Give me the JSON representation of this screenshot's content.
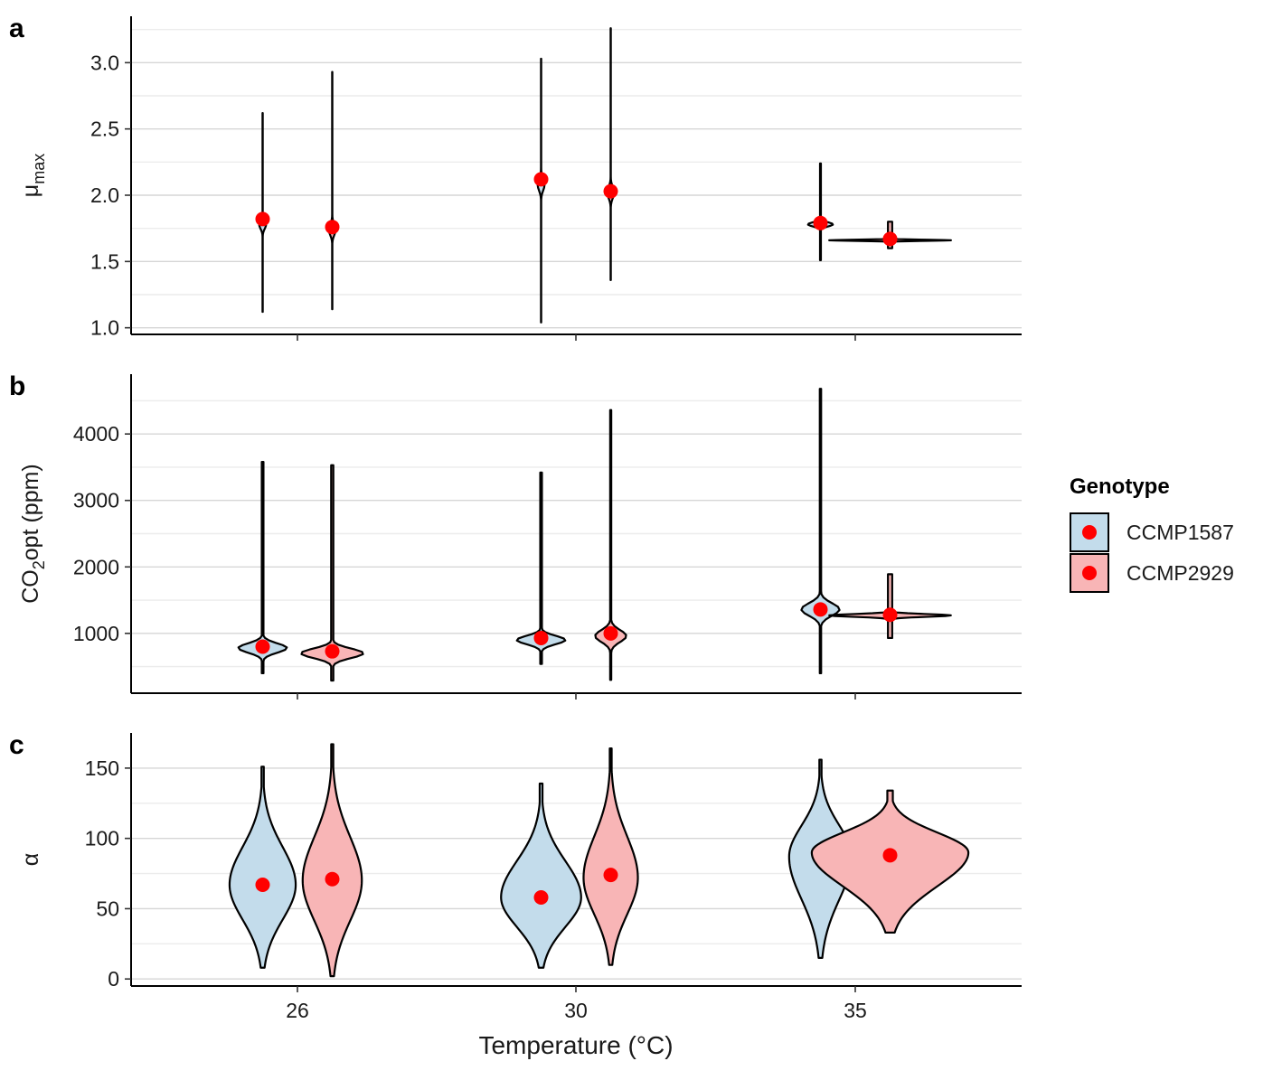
{
  "colors": {
    "CCMP1587": "#c3dceb",
    "CCMP2929": "#f8b5b6",
    "point": "#ff0000",
    "outline": "#000000",
    "grid_major": "#d6d6d6",
    "grid_minor": "#ececec"
  },
  "chart_data": {
    "type": "violin",
    "xlabel": "Temperature (°C)",
    "categories": [
      "26",
      "30",
      "35"
    ],
    "legend": {
      "title": "Genotype",
      "placement": "right",
      "entries": [
        "CCMP1587",
        "CCMP2929"
      ]
    },
    "panels": [
      {
        "tag": "a",
        "ylabel": "μmax",
        "ylabel_main": "μ",
        "ylabel_sub": "max",
        "ylim": [
          0.95,
          3.35
        ],
        "yticks": [
          "1.0",
          "1.5",
          "2.0",
          "2.5",
          "3.0"
        ],
        "series": [
          {
            "name": "CCMP1587",
            "violins": [
              {
                "x": "26",
                "min": 1.12,
                "max": 2.62,
                "point": 1.82,
                "mode": 1.78,
                "profile": "spike",
                "width": 0.1
              },
              {
                "x": "30",
                "min": 1.04,
                "max": 3.03,
                "point": 2.12,
                "mode": 2.08,
                "profile": "spike",
                "width": 0.1
              },
              {
                "x": "35",
                "min": 1.51,
                "max": 2.24,
                "point": 1.79,
                "mode": 1.78,
                "profile": "spike",
                "width": 0.36
              }
            ]
          },
          {
            "name": "CCMP2929",
            "violins": [
              {
                "x": "26",
                "min": 1.14,
                "max": 2.93,
                "point": 1.76,
                "mode": 1.74,
                "profile": "spike",
                "width": 0.1
              },
              {
                "x": "30",
                "min": 1.36,
                "max": 3.26,
                "point": 2.03,
                "mode": 2.02,
                "profile": "spike",
                "width": 0.1
              },
              {
                "x": "35",
                "min": 1.6,
                "max": 1.8,
                "point": 1.67,
                "mode": 1.66,
                "profile": "spike",
                "width": 1.75
              }
            ]
          }
        ]
      },
      {
        "tag": "b",
        "ylabel": "CO2opt (ppm)",
        "ylabel_main": "CO",
        "ylabel_sub": "2",
        "ylabel_end": "opt (ppm)",
        "ylim": [
          100,
          4900
        ],
        "yticks": [
          "1000",
          "2000",
          "3000",
          "4000"
        ],
        "series": [
          {
            "name": "CCMP1587",
            "violins": [
              {
                "x": "26",
                "min": 400,
                "max": 3580,
                "point": 800,
                "mode": 780,
                "profile": "spike",
                "width": 0.7
              },
              {
                "x": "30",
                "min": 540,
                "max": 3420,
                "point": 930,
                "mode": 900,
                "profile": "spike",
                "width": 0.7
              },
              {
                "x": "35",
                "min": 400,
                "max": 4680,
                "point": 1360,
                "mode": 1360,
                "profile": "spike",
                "width": 0.55
              }
            ]
          },
          {
            "name": "CCMP2929",
            "violins": [
              {
                "x": "26",
                "min": 290,
                "max": 3530,
                "point": 730,
                "mode": 700,
                "profile": "spike",
                "width": 0.9
              },
              {
                "x": "30",
                "min": 300,
                "max": 4360,
                "point": 1000,
                "mode": 960,
                "profile": "spike",
                "width": 0.45
              },
              {
                "x": "35",
                "min": 930,
                "max": 1890,
                "point": 1280,
                "mode": 1270,
                "profile": "spike",
                "width": 1.75
              }
            ]
          }
        ]
      },
      {
        "tag": "c",
        "ylabel": "α",
        "ylabel_main": "α",
        "ylim": [
          -5,
          175
        ],
        "yticks": [
          "0",
          "50",
          "100",
          "150"
        ],
        "series": [
          {
            "name": "CCMP1587",
            "violins": [
              {
                "x": "26",
                "min": 8,
                "max": 151,
                "point": 67,
                "mode": 67,
                "profile": "broad",
                "width": 0.95
              },
              {
                "x": "30",
                "min": 8,
                "max": 139,
                "point": 58,
                "mode": 58,
                "profile": "broad",
                "width": 1.15
              },
              {
                "x": "35",
                "min": 15,
                "max": 156,
                "point": 87,
                "mode": 87,
                "profile": "broad",
                "width": 0.9
              }
            ]
          },
          {
            "name": "CCMP2929",
            "violins": [
              {
                "x": "26",
                "min": 2,
                "max": 167,
                "point": 71,
                "mode": 70,
                "profile": "broad",
                "width": 0.85
              },
              {
                "x": "30",
                "min": 10,
                "max": 164,
                "point": 74,
                "mode": 72,
                "profile": "broad",
                "width": 0.78
              },
              {
                "x": "35",
                "min": 33,
                "max": 134,
                "point": 88,
                "mode": 90,
                "profile": "broad",
                "width": 2.25
              }
            ]
          }
        ]
      }
    ]
  }
}
